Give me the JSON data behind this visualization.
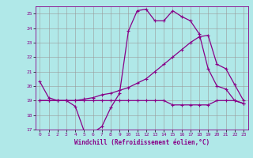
{
  "xlabel": "Windchill (Refroidissement éolien,°C)",
  "background_color": "#b0e8e8",
  "grid_color": "#999999",
  "line_color": "#880088",
  "xlim": [
    -0.5,
    23.5
  ],
  "ylim": [
    17,
    25.5
  ],
  "xticks": [
    0,
    1,
    2,
    3,
    4,
    5,
    6,
    7,
    8,
    9,
    10,
    11,
    12,
    13,
    14,
    15,
    16,
    17,
    18,
    19,
    20,
    21,
    22,
    23
  ],
  "yticks": [
    17,
    18,
    19,
    20,
    21,
    22,
    23,
    24,
    25
  ],
  "line1_x": [
    0,
    1,
    2,
    3,
    4,
    5,
    6,
    7,
    8,
    9,
    10,
    11,
    12,
    13,
    14,
    15,
    16,
    17,
    18,
    19,
    20,
    21,
    22,
    23
  ],
  "line1_y": [
    20.3,
    19.2,
    19.0,
    19.0,
    18.6,
    16.9,
    16.8,
    17.2,
    18.5,
    19.5,
    23.8,
    25.2,
    25.3,
    24.5,
    24.5,
    25.2,
    24.8,
    24.5,
    23.6,
    21.2,
    20.0,
    19.8,
    19.0,
    18.8
  ],
  "line2_x": [
    0,
    1,
    2,
    3,
    4,
    5,
    6,
    7,
    8,
    9,
    10,
    11,
    12,
    13,
    14,
    15,
    16,
    17,
    18,
    19,
    20,
    21,
    22,
    23
  ],
  "line2_y": [
    19.0,
    19.0,
    19.0,
    19.0,
    19.0,
    19.1,
    19.2,
    19.4,
    19.5,
    19.7,
    19.9,
    20.2,
    20.5,
    21.0,
    21.5,
    22.0,
    22.5,
    23.0,
    23.4,
    23.5,
    21.5,
    21.2,
    20.1,
    19.0
  ],
  "line3_x": [
    0,
    1,
    2,
    3,
    4,
    5,
    6,
    7,
    8,
    9,
    10,
    11,
    12,
    13,
    14,
    15,
    16,
    17,
    18,
    19,
    20,
    21,
    22,
    23
  ],
  "line3_y": [
    19.0,
    19.0,
    19.0,
    19.0,
    19.0,
    19.0,
    19.0,
    19.0,
    19.0,
    19.0,
    19.0,
    19.0,
    19.0,
    19.0,
    19.0,
    18.7,
    18.7,
    18.7,
    18.7,
    18.7,
    19.0,
    19.0,
    19.0,
    18.8
  ]
}
